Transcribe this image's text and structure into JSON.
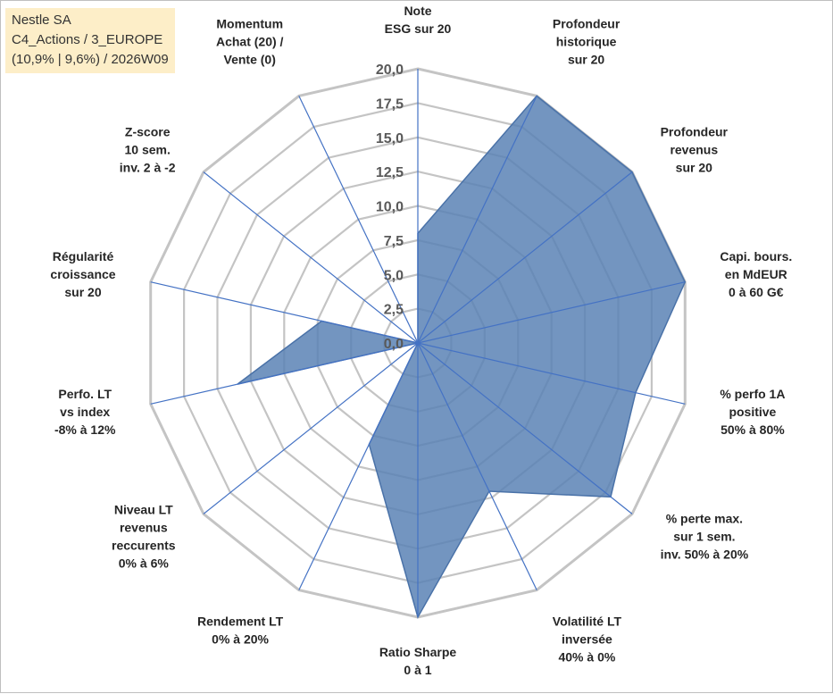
{
  "header": {
    "company": "Nestle SA",
    "category": "C4_Actions / 3_EUROPE",
    "meta": "(10,9% | 9,6%) / 2026W09"
  },
  "chart_data": {
    "type": "radar",
    "title": "Nestle SA",
    "rmin": 0,
    "rmax": 20,
    "rticks": [
      0,
      2.5,
      5,
      7.5,
      10,
      12.5,
      15,
      17.5,
      20
    ],
    "rtick_labels": [
      "0,0",
      "2,5",
      "5,0",
      "7,5",
      "10,0",
      "12,5",
      "15,0",
      "17,5",
      "20,0"
    ],
    "categories": [
      [
        "Note",
        "ESG sur 20"
      ],
      [
        "Profondeur",
        "historique",
        "sur 20"
      ],
      [
        "Profondeur",
        "revenus",
        "sur 20"
      ],
      [
        "Capi. bours.",
        "en MdEUR",
        "0 à 60 G€"
      ],
      [
        "% perfo 1A",
        "positive",
        "50% à 80%"
      ],
      [
        "% perte max.",
        "sur 1 sem.",
        "inv. 50% à 20%"
      ],
      [
        "Volatilité LT",
        "inversée",
        "40% à 0%"
      ],
      [
        "Ratio Sharpe",
        "0 à 1"
      ],
      [
        "Rendement LT",
        "0% à 20%"
      ],
      [
        "Niveau LT",
        "revenus",
        "reccurents",
        "0% à 6%"
      ],
      [
        "Perfo. LT",
        "vs index",
        "-8% à 12%"
      ],
      [
        "Régularité",
        "croissance",
        "sur 20"
      ],
      [
        "Z-score",
        "10 sem.",
        "inv. 2 à -2"
      ],
      [
        "Momentum",
        "Achat (20) /",
        "Vente (0)"
      ]
    ],
    "series": [
      {
        "name": "Nestle SA",
        "values": [
          8,
          20,
          20,
          20,
          16.3,
          18,
          12,
          20,
          8.2,
          0,
          13.5,
          7.2,
          0,
          0
        ]
      }
    ],
    "colors": {
      "fill": "#5b82b5",
      "stroke": "#4a72a8",
      "spoke": "#4472c4",
      "grid": "#c4c4c4",
      "tick_text": "#595959",
      "label_text": "#262626",
      "info_bg": "#fdeec8"
    }
  }
}
